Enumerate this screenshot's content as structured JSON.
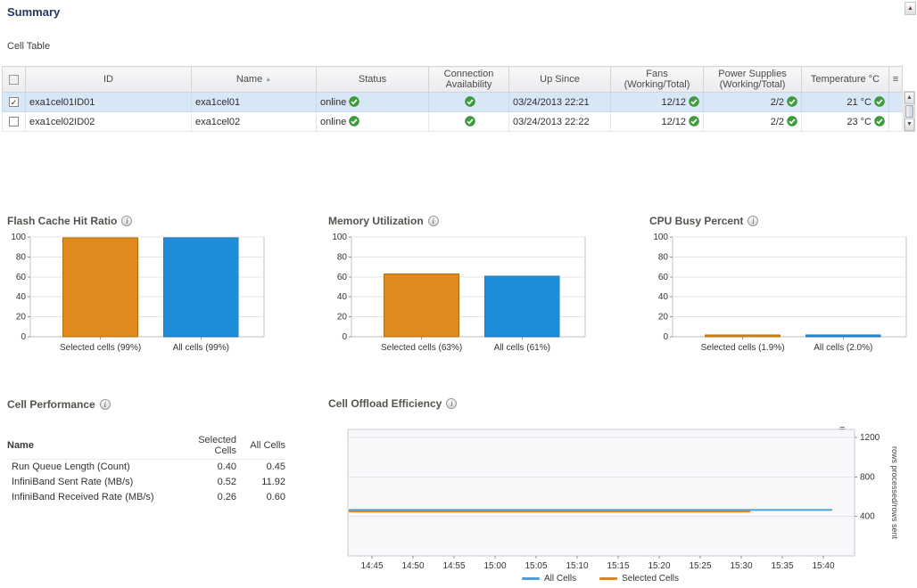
{
  "page": {
    "title": "Summary"
  },
  "icons": {
    "check": "✓",
    "sort_ascending": "▲",
    "menu": "≡",
    "info": "i",
    "scroll_up": "▲",
    "scroll_down": "▼"
  },
  "colors": {
    "selected_series": "#e08a1e",
    "all_series": "#1f8dd9",
    "status_ok": "#3ba03b",
    "selected_row_bg": "#d8e7f6"
  },
  "cell_table": {
    "label": "Cell Table",
    "sort_column": "Name",
    "sort_direction": "ascending",
    "columns": {
      "id": "ID",
      "name": "Name",
      "status": "Status",
      "connection": "Connection Availability",
      "up_since": "Up Since",
      "fans": "Fans (Working/Total)",
      "power": "Power Supplies (Working/Total)",
      "temperature": "Temperature °C"
    },
    "rows": [
      {
        "selected": true,
        "id": "exa1cel01ID01",
        "name": "exa1cel01",
        "status": "online",
        "status_ok": true,
        "connection_ok": true,
        "up_since": "03/24/2013 22:21",
        "fans": "12/12",
        "fans_ok": true,
        "power": "2/2",
        "power_ok": true,
        "temperature": "21 °C",
        "temperature_ok": true
      },
      {
        "selected": false,
        "id": "exa1cel02ID02",
        "name": "exa1cel02",
        "status": "online",
        "status_ok": true,
        "connection_ok": true,
        "up_since": "03/24/2013 22:22",
        "fans": "12/12",
        "fans_ok": true,
        "power": "2/2",
        "power_ok": true,
        "temperature": "23 °C",
        "temperature_ok": true
      }
    ]
  },
  "cell_performance": {
    "title": "Cell Performance",
    "columns": [
      "Name",
      "Selected Cells",
      "All Cells"
    ],
    "rows": [
      {
        "name": "Run Queue Length (Count)",
        "selected": "0.40",
        "all": "0.45"
      },
      {
        "name": "InfiniBand Sent Rate (MB/s)",
        "selected": "0.52",
        "all": "11.92"
      },
      {
        "name": "InfiniBand Received Rate (MB/s)",
        "selected": "0.26",
        "all": "0.60"
      }
    ]
  },
  "chart_data": [
    {
      "type": "bar",
      "title": "Flash Cache Hit Ratio",
      "categories": [
        "Selected cells (99%)",
        "All cells (99%)"
      ],
      "values": [
        99,
        99
      ],
      "bar_colors": [
        "#e08a1e",
        "#1f8dd9"
      ],
      "bar_border_colors": [
        "#b06f12",
        "#176ba6"
      ],
      "ylim": [
        0,
        100
      ],
      "yticks": [
        0,
        20,
        40,
        60,
        80,
        100
      ],
      "grid": true
    },
    {
      "type": "bar",
      "title": "Memory Utilization",
      "categories": [
        "Selected cells (63%)",
        "All cells (61%)"
      ],
      "values": [
        63,
        61
      ],
      "bar_colors": [
        "#e08a1e",
        "#1f8dd9"
      ],
      "bar_border_colors": [
        "#b06f12",
        "#176ba6"
      ],
      "ylim": [
        0,
        100
      ],
      "yticks": [
        0,
        20,
        40,
        60,
        80,
        100
      ],
      "grid": true
    },
    {
      "type": "bar",
      "title": "CPU Busy Percent",
      "categories": [
        "Selected cells (1.9%)",
        "All cells (2.0%)"
      ],
      "values": [
        1.9,
        2.0
      ],
      "bar_colors": [
        "#e08a1e",
        "#1f8dd9"
      ],
      "bar_border_colors": [
        "#b06f12",
        "#176ba6"
      ],
      "ylim": [
        0,
        100
      ],
      "yticks": [
        0,
        20,
        40,
        60,
        80,
        100
      ],
      "grid": true
    },
    {
      "type": "line",
      "title": "Cell Offload Efficiency",
      "x_ticks": [
        "14:45",
        "14:50",
        "14:55",
        "15:00",
        "15:05",
        "15:10",
        "15:15",
        "15:20",
        "15:25",
        "15:30",
        "15:35",
        "15:40"
      ],
      "ylabel": "rows processed/rows sent",
      "yticks": [
        400,
        800,
        1200
      ],
      "ylim": [
        0,
        1280
      ],
      "legend_position": "bottom",
      "series": [
        {
          "name": "All Cells",
          "color": "#4f9fd8",
          "value": 465,
          "x_start": -0.55,
          "x_end": 11.2
        },
        {
          "name": "Selected Cells",
          "color": "#dc8420",
          "value": 450,
          "x_start": -0.55,
          "x_end": 9.2
        }
      ]
    }
  ]
}
